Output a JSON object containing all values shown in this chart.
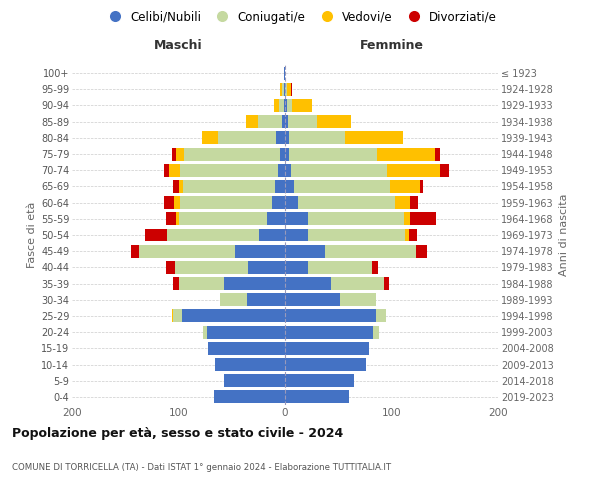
{
  "age_groups": [
    "0-4",
    "5-9",
    "10-14",
    "15-19",
    "20-24",
    "25-29",
    "30-34",
    "35-39",
    "40-44",
    "45-49",
    "50-54",
    "55-59",
    "60-64",
    "65-69",
    "70-74",
    "75-79",
    "80-84",
    "85-89",
    "90-94",
    "95-99",
    "100+"
  ],
  "birth_years": [
    "2019-2023",
    "2014-2018",
    "2009-2013",
    "2004-2008",
    "1999-2003",
    "1994-1998",
    "1989-1993",
    "1984-1988",
    "1979-1983",
    "1974-1978",
    "1969-1973",
    "1964-1968",
    "1959-1963",
    "1954-1958",
    "1949-1953",
    "1944-1948",
    "1939-1943",
    "1934-1938",
    "1929-1933",
    "1924-1928",
    "≤ 1923"
  ],
  "maschi": {
    "celibi": [
      67,
      57,
      66,
      72,
      73,
      97,
      36,
      57,
      35,
      47,
      24,
      17,
      12,
      9,
      7,
      5,
      8,
      3,
      1,
      1,
      1
    ],
    "coniugati": [
      0,
      0,
      0,
      0,
      4,
      8,
      25,
      43,
      68,
      90,
      87,
      83,
      87,
      87,
      92,
      90,
      55,
      22,
      5,
      2,
      0
    ],
    "vedovi": [
      0,
      0,
      0,
      0,
      0,
      1,
      0,
      0,
      0,
      0,
      0,
      2,
      5,
      4,
      10,
      7,
      15,
      12,
      4,
      2,
      0
    ],
    "divorziati": [
      0,
      0,
      0,
      0,
      0,
      0,
      0,
      5,
      9,
      8,
      20,
      10,
      10,
      5,
      5,
      4,
      0,
      0,
      0,
      0,
      0
    ]
  },
  "femmine": {
    "nubili": [
      60,
      65,
      76,
      79,
      83,
      85,
      52,
      43,
      22,
      38,
      22,
      22,
      12,
      8,
      6,
      4,
      4,
      3,
      2,
      0,
      0
    ],
    "coniugate": [
      0,
      0,
      0,
      0,
      5,
      10,
      33,
      50,
      60,
      85,
      91,
      90,
      91,
      91,
      90,
      82,
      52,
      27,
      5,
      2,
      0
    ],
    "vedove": [
      0,
      0,
      0,
      0,
      0,
      0,
      0,
      0,
      0,
      0,
      3,
      5,
      14,
      28,
      50,
      55,
      55,
      32,
      18,
      4,
      0
    ],
    "divorziate": [
      0,
      0,
      0,
      0,
      0,
      0,
      0,
      5,
      5,
      10,
      8,
      25,
      8,
      3,
      8,
      5,
      0,
      0,
      0,
      1,
      0
    ]
  },
  "colors": {
    "celibi": "#4472c4",
    "coniugati": "#c5d9a0",
    "vedovi": "#ffc000",
    "divorziati": "#cc0000"
  },
  "xlim": 200,
  "title": "Popolazione per età, sesso e stato civile - 2024",
  "subtitle": "COMUNE DI TORRICELLA (TA) - Dati ISTAT 1° gennaio 2024 - Elaborazione TUTTITALIA.IT",
  "xlabel_maschi": "Maschi",
  "xlabel_femmine": "Femmine",
  "ylabel_left": "Fasce di età",
  "ylabel_right": "Anni di nascita",
  "legend_labels": [
    "Celibi/Nubili",
    "Coniugati/e",
    "Vedovi/e",
    "Divorziati/e"
  ],
  "background_color": "#ffffff"
}
